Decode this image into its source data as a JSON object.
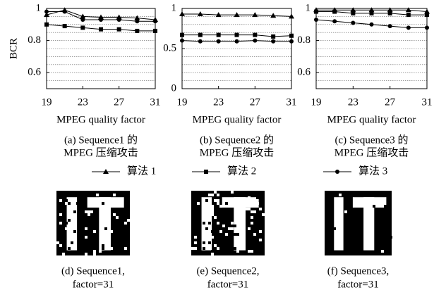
{
  "chart_data": [
    {
      "type": "line",
      "ylabel": "BCR",
      "xlabel": "MPEG quality factor",
      "caption": [
        "(a) Sequence1 的",
        "MPEG 压缩攻击"
      ],
      "x": [
        19,
        21,
        23,
        25,
        27,
        29,
        31
      ],
      "xlim": [
        19,
        31
      ],
      "xticks": [
        19,
        23,
        27,
        31
      ],
      "ylim": [
        0.5,
        1
      ],
      "yticks": [
        0.6,
        0.8,
        1
      ],
      "ygrid": [
        0.55,
        0.6,
        0.65,
        0.7,
        0.75,
        0.8,
        0.85,
        0.9,
        0.95
      ],
      "series": [
        {
          "name": "算法 1",
          "marker": "triangle",
          "color": "#000",
          "values": [
            0.96,
            0.99,
            0.95,
            0.945,
            0.945,
            0.94,
            0.93
          ]
        },
        {
          "name": "算法 2",
          "marker": "square",
          "color": "#000",
          "values": [
            0.9,
            0.89,
            0.88,
            0.87,
            0.87,
            0.86,
            0.86
          ]
        },
        {
          "name": "算法 3",
          "marker": "circle",
          "color": "#000",
          "values": [
            0.98,
            0.98,
            0.93,
            0.93,
            0.93,
            0.92,
            0.92
          ]
        }
      ]
    },
    {
      "type": "line",
      "xlabel": "MPEG quality factor",
      "caption": [
        "(b) Sequence2 的",
        "MPEG 压缩攻击"
      ],
      "x": [
        19,
        21,
        23,
        25,
        27,
        29,
        31
      ],
      "xlim": [
        19,
        31
      ],
      "xticks": [
        19,
        23,
        27,
        31
      ],
      "ylim": [
        0,
        1
      ],
      "yticks": [
        0,
        0.5,
        1
      ],
      "ygrid": [
        0.1,
        0.2,
        0.3,
        0.4,
        0.5,
        0.6,
        0.7,
        0.8,
        0.9
      ],
      "series": [
        {
          "name": "算法 1",
          "marker": "triangle",
          "color": "#000",
          "values": [
            0.93,
            0.93,
            0.92,
            0.92,
            0.92,
            0.91,
            0.9
          ]
        },
        {
          "name": "算法 2",
          "marker": "square",
          "color": "#000",
          "values": [
            0.67,
            0.67,
            0.67,
            0.67,
            0.67,
            0.65,
            0.66
          ]
        },
        {
          "name": "算法 3",
          "marker": "circle",
          "color": "#000",
          "values": [
            0.6,
            0.59,
            0.59,
            0.59,
            0.6,
            0.59,
            0.59
          ]
        }
      ]
    },
    {
      "type": "line",
      "xlabel": "MPEG quality factor",
      "caption": [
        "(c) Sequence3 的",
        "MPEG 压缩攻击"
      ],
      "x": [
        19,
        21,
        23,
        25,
        27,
        29,
        31
      ],
      "xlim": [
        19,
        31
      ],
      "xticks": [
        19,
        23,
        27,
        31
      ],
      "ylim": [
        0.5,
        1
      ],
      "yticks": [
        0.6,
        0.8,
        1
      ],
      "ygrid": [
        0.55,
        0.6,
        0.65,
        0.7,
        0.75,
        0.8,
        0.85,
        0.9,
        0.95
      ],
      "series": [
        {
          "name": "算法 1",
          "marker": "triangle",
          "color": "#000",
          "values": [
            0.99,
            0.99,
            0.99,
            0.99,
            0.99,
            0.99,
            0.98
          ]
        },
        {
          "name": "算法 2",
          "marker": "square",
          "color": "#000",
          "values": [
            0.98,
            0.98,
            0.97,
            0.97,
            0.97,
            0.96,
            0.96
          ]
        },
        {
          "name": "算法 3",
          "marker": "circle",
          "color": "#000",
          "values": [
            0.93,
            0.92,
            0.91,
            0.9,
            0.89,
            0.88,
            0.88
          ]
        }
      ]
    }
  ],
  "images": [
    {
      "caption": [
        "(d) Sequence1,",
        "factor=31"
      ]
    },
    {
      "caption": [
        "(e) Sequence2,",
        "factor=31"
      ]
    },
    {
      "caption": [
        "(f) Sequence3,",
        "factor=31"
      ]
    }
  ]
}
